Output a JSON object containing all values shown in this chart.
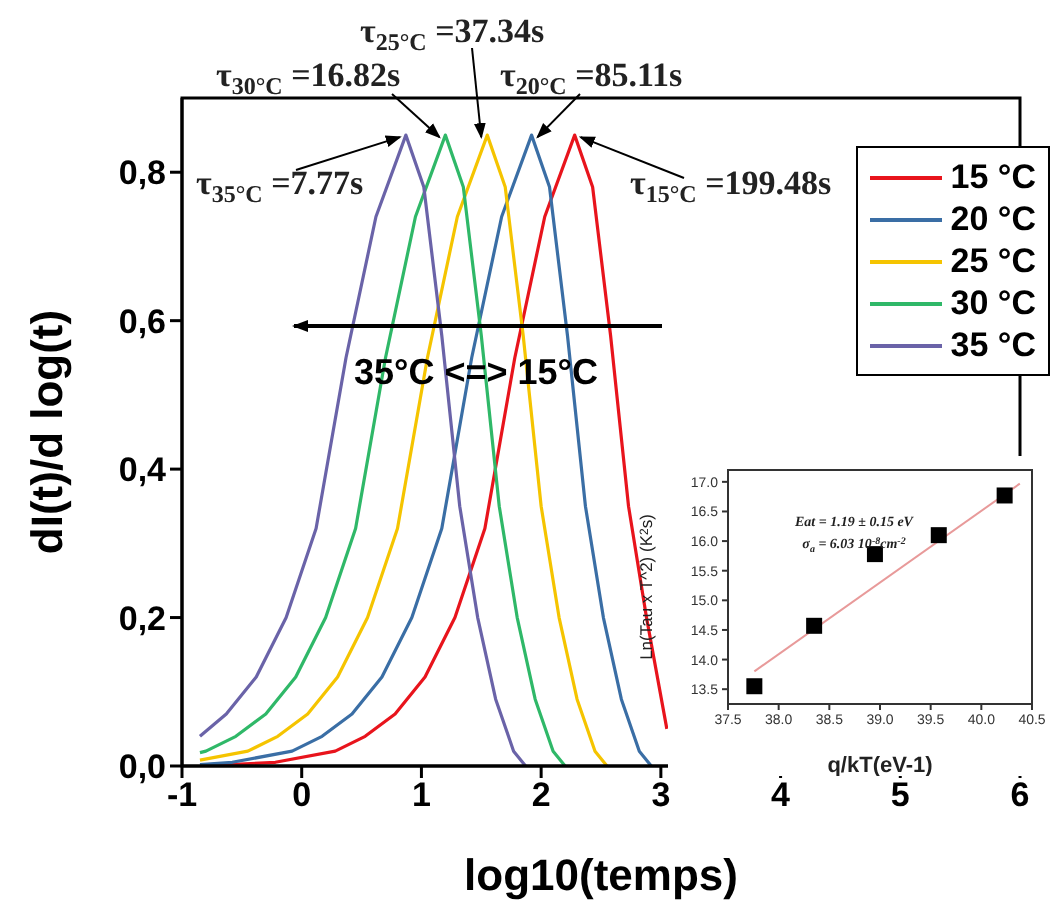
{
  "chart_data": [
    {
      "type": "line",
      "xlabel": "log10(temps)",
      "ylabel": "dI(t)/d log(t)",
      "xlim": [
        -1,
        6
      ],
      "xticks": [
        -1,
        0,
        1,
        2,
        3,
        4,
        5,
        6
      ],
      "ylim": [
        0,
        0.9
      ],
      "yticks": [
        {
          "value": 0,
          "label": "0,0"
        },
        {
          "value": 0.2,
          "label": "0,2"
        },
        {
          "value": 0.4,
          "label": "0,4"
        },
        {
          "value": 0.6,
          "label": "0,6"
        },
        {
          "value": 0.8,
          "label": "0,8"
        }
      ],
      "grid": false,
      "legend": "top right",
      "series": [
        {
          "name": "15 °C",
          "color": "#e8141c",
          "x": [
            -0.85,
            -0.22,
            0.28,
            0.53,
            0.78,
            1.03,
            1.28,
            1.53,
            1.78,
            2.03,
            2.28,
            2.43,
            2.58,
            2.73,
            2.88,
            3.05
          ],
          "values": [
            0,
            0.005,
            0.02,
            0.04,
            0.07,
            0.12,
            0.2,
            0.32,
            0.55,
            0.74,
            0.85,
            0.78,
            0.58,
            0.35,
            0.2,
            0.05
          ]
        },
        {
          "name": "20 °C",
          "color": "#3a6ea5",
          "x": [
            -0.85,
            -0.58,
            -0.08,
            0.17,
            0.42,
            0.67,
            0.92,
            1.17,
            1.42,
            1.67,
            1.92,
            2.07,
            2.22,
            2.37,
            2.52,
            2.67,
            2.82,
            2.92
          ],
          "values": [
            0.002,
            0.005,
            0.02,
            0.04,
            0.07,
            0.12,
            0.2,
            0.32,
            0.55,
            0.74,
            0.85,
            0.78,
            0.58,
            0.35,
            0.2,
            0.09,
            0.02,
            0
          ]
        },
        {
          "name": "25 °C",
          "color": "#f5c400",
          "x": [
            -0.85,
            -0.45,
            -0.2,
            0.05,
            0.3,
            0.55,
            0.8,
            1.05,
            1.3,
            1.55,
            1.7,
            1.85,
            2.0,
            2.15,
            2.3,
            2.45,
            2.55
          ],
          "values": [
            0.008,
            0.02,
            0.04,
            0.07,
            0.12,
            0.2,
            0.32,
            0.55,
            0.74,
            0.85,
            0.78,
            0.58,
            0.35,
            0.2,
            0.09,
            0.02,
            0
          ]
        },
        {
          "name": "30 °C",
          "color": "#2fb868",
          "x": [
            -0.85,
            -0.8,
            -0.55,
            -0.3,
            -0.05,
            0.2,
            0.45,
            0.7,
            0.95,
            1.2,
            1.35,
            1.5,
            1.65,
            1.8,
            1.95,
            2.1,
            2.2
          ],
          "values": [
            0.018,
            0.02,
            0.04,
            0.07,
            0.12,
            0.2,
            0.32,
            0.55,
            0.74,
            0.85,
            0.78,
            0.58,
            0.35,
            0.2,
            0.09,
            0.02,
            0
          ]
        },
        {
          "name": "35 °C",
          "color": "#6a63a8",
          "x": [
            -0.85,
            -0.63,
            -0.38,
            -0.13,
            0.12,
            0.37,
            0.62,
            0.87,
            1.02,
            1.17,
            1.32,
            1.47,
            1.62,
            1.77,
            1.87
          ],
          "values": [
            0.04,
            0.07,
            0.12,
            0.2,
            0.32,
            0.55,
            0.74,
            0.85,
            0.78,
            0.58,
            0.35,
            0.2,
            0.09,
            0.02,
            0
          ]
        }
      ],
      "annotations": [
        {
          "text": "τ$_{35°C}$ =7.77s",
          "x": 0.87,
          "y": 0.85
        },
        {
          "text": "τ$_{30°C}$ =16.82s",
          "x": 1.2,
          "y": 0.85
        },
        {
          "text": "τ$_{25°C}$ =37.34s",
          "x": 1.55,
          "y": 0.85
        },
        {
          "text": "τ$_{20°C}$ =85.11s",
          "x": 1.92,
          "y": 0.85
        },
        {
          "text": "τ$_{15°C}$ =199.48s",
          "x": 2.28,
          "y": 0.85
        },
        "35°C <=> 15°C"
      ]
    },
    {
      "type": "scatter",
      "xlabel": "q/kT(eV-1)",
      "ylabel": "Ln(Tau x T^2) (K$^{2}$s)",
      "xlim": [
        37.5,
        40.5
      ],
      "xticks": [
        37.5,
        {
          "value": 38,
          "label": "38.0"
        },
        38.5,
        {
          "value": 39,
          "label": "39.0"
        },
        39.5,
        {
          "value": 40,
          "label": "40.0"
        },
        40.5
      ],
      "ylim": [
        13.25,
        17.2
      ],
      "yticks": [
        13.5,
        {
          "value": 14,
          "label": "14.0"
        },
        14.5,
        {
          "value": 15,
          "label": "15.0"
        },
        15.5,
        {
          "value": 16,
          "label": "16.0"
        },
        16.5,
        {
          "value": 17,
          "label": "17.0"
        }
      ],
      "grid": false,
      "series": [
        {
          "color": "#000000",
          "marker": "square",
          "x": [
            37.76,
            38.35,
            38.95,
            39.58,
            40.23
          ],
          "values": [
            13.55,
            14.57,
            15.78,
            16.1,
            16.77
          ]
        },
        {
          "type": "line",
          "color": "#e89a9a",
          "x": [
            37.76,
            40.38
          ],
          "values": [
            13.8,
            16.97
          ]
        }
      ],
      "annotations": [
        "Eat = 1.19 ± 0.15 eV",
        "σ$_{a}$ = 6.03 10$^{-8}$cm$^{-2}$"
      ]
    }
  ]
}
